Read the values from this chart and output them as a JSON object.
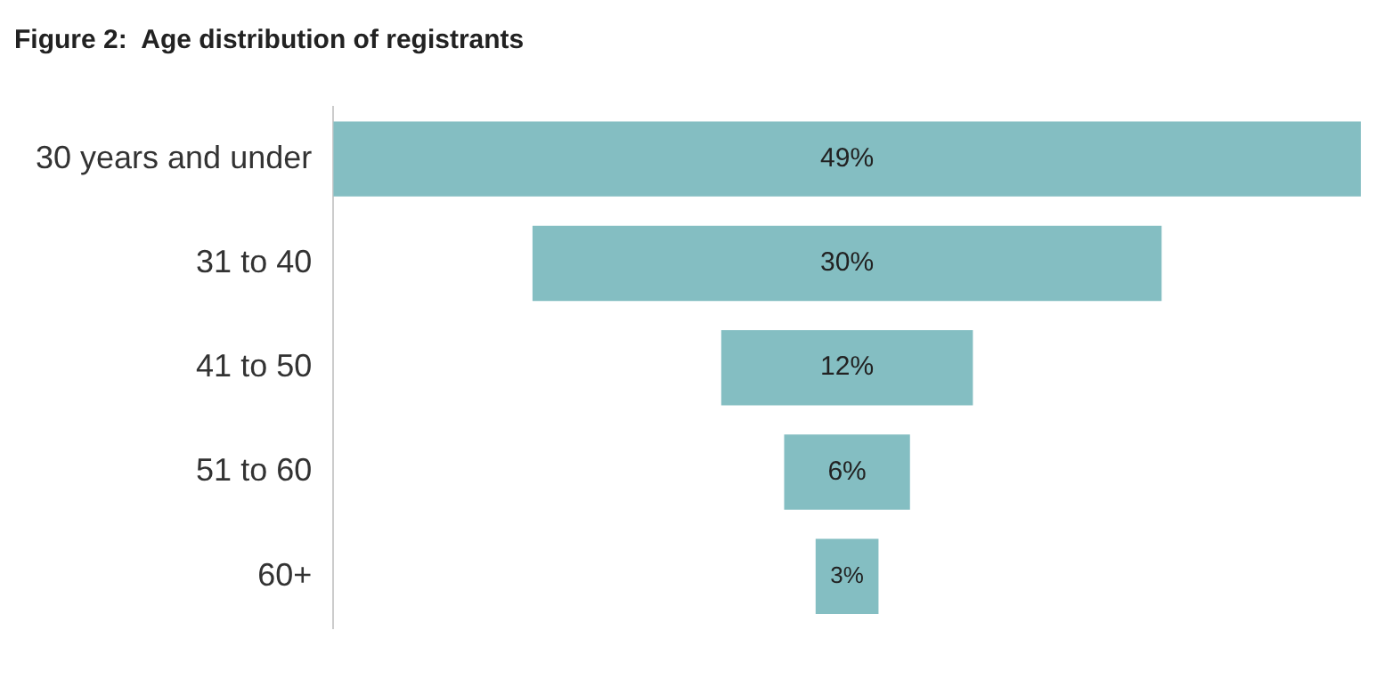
{
  "chart_data": {
    "type": "other",
    "title": "Figure 2:  Age distribution of registrants",
    "categories": [
      "30 years and under",
      "31 to 40",
      "41 to 50",
      "51 to 60",
      "60+"
    ],
    "values": [
      49,
      30,
      12,
      6,
      3
    ],
    "value_labels": [
      "49%",
      "30%",
      "12%",
      "6%",
      "3%"
    ],
    "color": "#84bec2"
  }
}
